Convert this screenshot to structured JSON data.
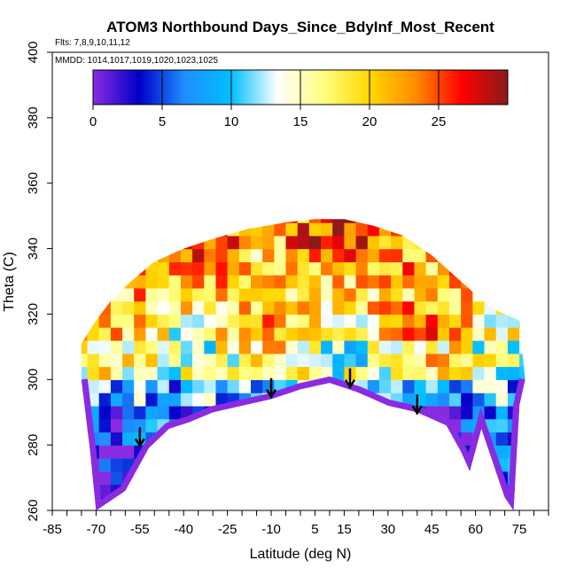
{
  "chart_data": {
    "type": "heatmap",
    "title": "ATOM3 Northbound Days_Since_BdyInf_Most_Recent",
    "flights_note": "Flts: 7,8,9,10,11,12",
    "dates_note": "MMDD: 1014,1017,1019,1020,1023,1025",
    "xlabel": "Latitude (deg N)",
    "ylabel": "Theta (C)",
    "xlim": [
      -85,
      85
    ],
    "ylim": [
      260,
      400
    ],
    "x_ticks": [
      -85,
      -70,
      -55,
      -40,
      -25,
      -10,
      5,
      15,
      30,
      45,
      60,
      75
    ],
    "x_tick_labels": [
      "-85",
      "-70",
      "-55",
      "-40",
      "-25",
      "-10",
      "5",
      "15",
      "30",
      "45",
      "60",
      "75"
    ],
    "y_ticks": [
      260,
      280,
      300,
      320,
      340,
      360,
      380,
      400
    ],
    "y_tick_labels": [
      "260",
      "280",
      "300",
      "320",
      "340",
      "360",
      "380",
      "400"
    ],
    "colorbar": {
      "range": [
        0,
        30
      ],
      "ticks": [
        0,
        5,
        10,
        15,
        20,
        25
      ],
      "tick_labels": [
        "0",
        "5",
        "10",
        "15",
        "20",
        "25"
      ],
      "colors": [
        "#8a2be2",
        "#0000c8",
        "#1e90ff",
        "#00bfff",
        "#ffffff",
        "#ffff80",
        "#ffd700",
        "#ff8c00",
        "#ff0000",
        "#8b1a1a"
      ]
    },
    "coverage_top": [
      {
        "lat": -75,
        "theta": 311
      },
      {
        "lat": -70,
        "theta": 318
      },
      {
        "lat": -65,
        "theta": 324
      },
      {
        "lat": -58,
        "theta": 330
      },
      {
        "lat": -50,
        "theta": 336
      },
      {
        "lat": -40,
        "theta": 340
      },
      {
        "lat": -30,
        "theta": 343
      },
      {
        "lat": -18,
        "theta": 346
      },
      {
        "lat": -5,
        "theta": 348
      },
      {
        "lat": 5,
        "theta": 349
      },
      {
        "lat": 15,
        "theta": 349
      },
      {
        "lat": 25,
        "theta": 347
      },
      {
        "lat": 35,
        "theta": 344
      },
      {
        "lat": 45,
        "theta": 338
      },
      {
        "lat": 55,
        "theta": 330
      },
      {
        "lat": 65,
        "theta": 322
      },
      {
        "lat": 75,
        "theta": 318
      }
    ],
    "coverage_bottom": [
      {
        "lat": -75,
        "theta": 300
      },
      {
        "lat": -72,
        "theta": 278
      },
      {
        "lat": -70,
        "theta": 260
      },
      {
        "lat": -60,
        "theta": 266
      },
      {
        "lat": -52,
        "theta": 279
      },
      {
        "lat": -45,
        "theta": 285
      },
      {
        "lat": -38,
        "theta": 287
      },
      {
        "lat": -30,
        "theta": 290
      },
      {
        "lat": -20,
        "theta": 292
      },
      {
        "lat": -10,
        "theta": 294
      },
      {
        "lat": 0,
        "theta": 297
      },
      {
        "lat": 10,
        "theta": 299
      },
      {
        "lat": 20,
        "theta": 296
      },
      {
        "lat": 30,
        "theta": 292
      },
      {
        "lat": 40,
        "theta": 290
      },
      {
        "lat": 50,
        "theta": 286
      },
      {
        "lat": 55,
        "theta": 278
      },
      {
        "lat": 58,
        "theta": 272
      },
      {
        "lat": 62,
        "theta": 285
      },
      {
        "lat": 70,
        "theta": 264
      },
      {
        "lat": 73,
        "theta": 260
      },
      {
        "lat": 75,
        "theta": 292
      },
      {
        "lat": 77,
        "theta": 300
      }
    ],
    "bands": [
      {
        "theta_min": 260,
        "theta_max": 280,
        "mean_days": 3
      },
      {
        "theta_min": 280,
        "theta_max": 290,
        "mean_days": 5
      },
      {
        "theta_min": 290,
        "theta_max": 300,
        "mean_days": 9
      },
      {
        "theta_min": 300,
        "theta_max": 310,
        "mean_days": 16
      },
      {
        "theta_min": 310,
        "theta_max": 320,
        "mean_days": 19
      },
      {
        "theta_min": 320,
        "theta_max": 330,
        "mean_days": 20
      },
      {
        "theta_min": 330,
        "theta_max": 340,
        "mean_days": 22
      },
      {
        "theta_min": 340,
        "theta_max": 350,
        "mean_days": 24
      }
    ],
    "arrows": [
      {
        "lat": -55,
        "theta": 280
      },
      {
        "lat": -10,
        "theta": 295
      },
      {
        "lat": 17,
        "theta": 298
      },
      {
        "lat": 40,
        "theta": 290
      }
    ]
  }
}
